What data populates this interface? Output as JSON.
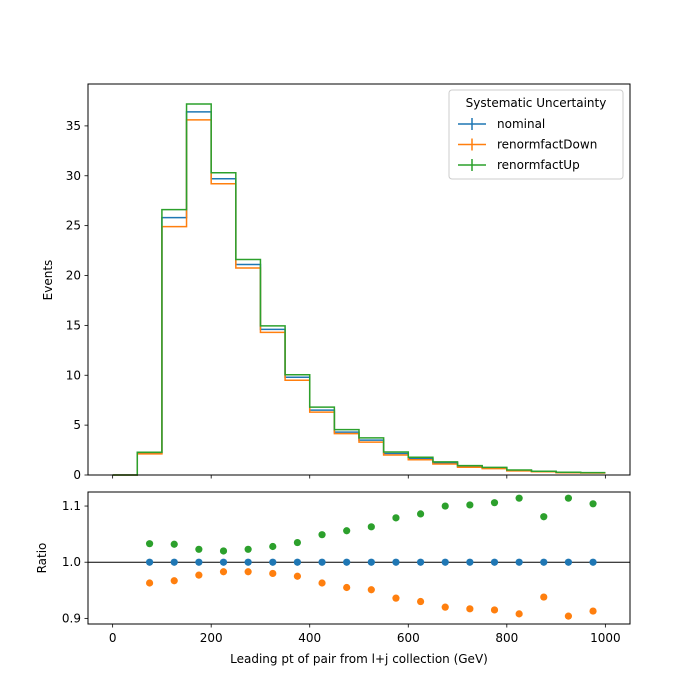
{
  "chart_data": [
    {
      "panel": "main",
      "type": "histogram-step",
      "ylabel": "Events",
      "xlim": [
        -50,
        1050
      ],
      "ylim": [
        0,
        39.2
      ],
      "x_ticks": [
        0,
        200,
        400,
        600,
        800,
        1000
      ],
      "y_ticks": [
        0,
        5,
        10,
        15,
        20,
        25,
        30,
        35
      ],
      "bin_edges": [
        0,
        50,
        100,
        150,
        200,
        250,
        300,
        350,
        400,
        450,
        500,
        550,
        600,
        650,
        700,
        750,
        800,
        850,
        900,
        950,
        1000
      ],
      "legend": {
        "title": "Systematic Uncertainty",
        "position": "top-right"
      },
      "series": [
        {
          "name": "nominal",
          "color": "#1f77b4",
          "values": [
            0.0,
            2.2,
            25.8,
            36.4,
            29.7,
            21.1,
            14.6,
            9.8,
            6.5,
            4.3,
            3.5,
            2.15,
            1.65,
            1.2,
            0.85,
            0.7,
            0.45,
            0.35,
            0.25,
            0.22
          ]
        },
        {
          "name": "renormfactDown",
          "color": "#ff7f0e",
          "values": [
            0.0,
            2.12,
            24.9,
            35.6,
            29.2,
            20.75,
            14.3,
            9.5,
            6.3,
            4.15,
            3.3,
            2.0,
            1.53,
            1.1,
            0.78,
            0.64,
            0.41,
            0.33,
            0.23,
            0.2
          ]
        },
        {
          "name": "renormfactUp",
          "color": "#2ca02c",
          "values": [
            0.0,
            2.28,
            26.6,
            37.2,
            30.3,
            21.6,
            14.95,
            10.05,
            6.8,
            4.55,
            3.72,
            2.3,
            1.78,
            1.32,
            0.94,
            0.77,
            0.5,
            0.38,
            0.27,
            0.24
          ]
        }
      ]
    },
    {
      "panel": "ratio",
      "type": "scatter",
      "xlabel": "Leading pt of pair from l+j collection (GeV)",
      "ylabel": "Ratio",
      "xlim": [
        -50,
        1050
      ],
      "ylim": [
        0.89,
        1.125
      ],
      "x_ticks": [
        0,
        200,
        400,
        600,
        800,
        1000
      ],
      "y_ticks": [
        0.9,
        1.0,
        1.1
      ],
      "reference_line": 1.0,
      "x": [
        75,
        125,
        175,
        225,
        275,
        325,
        375,
        425,
        475,
        525,
        575,
        625,
        675,
        725,
        775,
        825,
        875,
        925,
        975
      ],
      "series": [
        {
          "name": "nominal",
          "color": "#1f77b4",
          "values": [
            1.0,
            1.0,
            1.0,
            1.0,
            1.0,
            1.0,
            1.0,
            1.0,
            1.0,
            1.0,
            1.0,
            1.0,
            1.0,
            1.0,
            1.0,
            1.0,
            1.0,
            1.0,
            1.0
          ]
        },
        {
          "name": "renormfactDown",
          "color": "#ff7f0e",
          "values": [
            0.963,
            0.967,
            0.977,
            0.983,
            0.983,
            0.98,
            0.975,
            0.963,
            0.955,
            0.951,
            0.936,
            0.93,
            0.92,
            0.917,
            0.915,
            0.908,
            0.938,
            0.904,
            0.913
          ]
        },
        {
          "name": "renormfactUp",
          "color": "#2ca02c",
          "values": [
            1.033,
            1.032,
            1.023,
            1.02,
            1.023,
            1.028,
            1.035,
            1.049,
            1.056,
            1.063,
            1.079,
            1.086,
            1.1,
            1.102,
            1.106,
            1.114,
            1.081,
            1.114,
            1.104
          ]
        }
      ]
    }
  ]
}
